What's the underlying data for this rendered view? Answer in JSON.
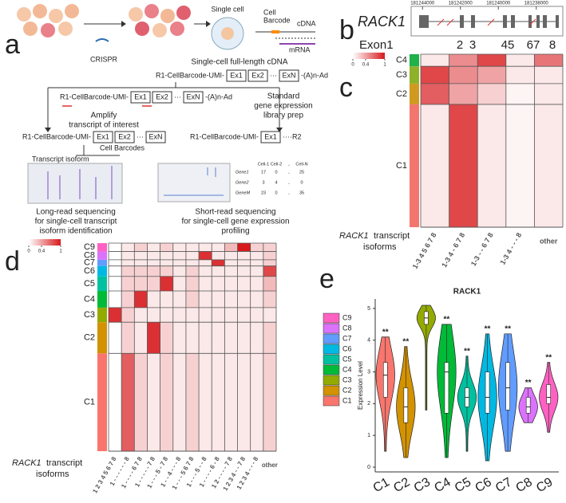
{
  "panel_a": {
    "label": "a",
    "crispr": "CRISPR",
    "single_cell": "Single cell",
    "cell_barcode": [
      "Cell",
      "Barcode"
    ],
    "cdna": "cDNA",
    "mrna": "mRNA",
    "cdna_title": "Single-cell full-length cDNA",
    "construct_full": [
      "R1-CellBarcode-UMI-",
      "Ex1",
      "Ex2",
      "···",
      "ExN",
      "-(A)n-Ad"
    ],
    "construct_amplify": [
      "R1-CellBarcode-UMI-",
      "Ex1",
      "Ex2",
      "···",
      "ExN",
      "-(A)n-Ad"
    ],
    "amplify": [
      "Amplify",
      "transcript of interest"
    ],
    "library_prep": [
      "Standard",
      "gene expression",
      "library prep"
    ],
    "construct_long": [
      "R1-CellBarcode-UMI-",
      "Ex1",
      "Ex2",
      "···",
      "ExN"
    ],
    "construct_short": [
      "R1-CellBarcode-UMI-",
      "Ex1",
      "····R2"
    ],
    "cell_barcodes": "Cell Barcodes",
    "transcript_isoform": "Transcript isoform",
    "long_read": [
      "Long-read sequencing",
      "for single-cell transcript",
      "isoform identification"
    ],
    "short_read": [
      "Short-read sequencing",
      "for single-cell gene expression",
      "profiling"
    ],
    "table": {
      "header": [
        "Cell-1",
        "Cell-2",
        "..",
        "Cell-N"
      ],
      "rows": [
        [
          "Gene1",
          "17",
          "0",
          "..",
          "25"
        ],
        [
          "Gene2",
          "3",
          "4",
          "..",
          "0"
        ],
        [
          "GeneM",
          "23",
          "0",
          "..",
          "35"
        ]
      ]
    }
  },
  "panel_b": {
    "label": "b",
    "gene": "RACK1",
    "xlim": [
      181244600,
      181236600
    ],
    "xticks": [
      181244000,
      181242000,
      181240000,
      181238000
    ],
    "exons": [
      "Exon1",
      "2",
      "3",
      "45",
      "67",
      "8"
    ]
  },
  "panel_c": {
    "label": "c",
    "colorbar_ticks": [
      0,
      0.4,
      1
    ],
    "caption": [
      "RACK1",
      "transcript",
      "isoforms"
    ],
    "clusters": [
      {
        "name": "C4",
        "color": "#1fb14a"
      },
      {
        "name": "C3",
        "color": "#8db22a"
      },
      {
        "name": "C2",
        "color": "#cf9a1f"
      },
      {
        "name": "C1",
        "color": "#f3766e"
      }
    ],
    "isoforms": [
      "1-3 4 5 6 7 8",
      "1-3 4 - 6 7 8",
      "1-3 - - 6 7 8",
      "1-3 4 - - - 8",
      "other"
    ],
    "values": [
      [
        0.1,
        0.5,
        0.8,
        0.1,
        0.6
      ],
      [
        0.8,
        0.5,
        0.4,
        0.1,
        0.1
      ],
      [
        0.7,
        0.4,
        0.2,
        0.05,
        0.1
      ],
      [
        0.1,
        0.8,
        0.1,
        0.05,
        0.1
      ]
    ],
    "cluster_shares": [
      0.07,
      0.1,
      0.12,
      0.71
    ]
  },
  "panel_d": {
    "label": "d",
    "colorbar_ticks": [
      0,
      0.4,
      1
    ],
    "caption": [
      "RACK1",
      "transcript",
      "isoforms"
    ],
    "clusters": [
      {
        "name": "C9",
        "color": "#ff61c3"
      },
      {
        "name": "C8",
        "color": "#db72fb"
      },
      {
        "name": "C7",
        "color": "#619cff"
      },
      {
        "name": "C6",
        "color": "#00b9e3"
      },
      {
        "name": "C5",
        "color": "#00c19f"
      },
      {
        "name": "C4",
        "color": "#00ba38"
      },
      {
        "name": "C3",
        "color": "#93aa00"
      },
      {
        "name": "C2",
        "color": "#d39200"
      },
      {
        "name": "C1",
        "color": "#f8766d"
      }
    ],
    "isoforms": [
      "1 2 3 4 5 6 7 8",
      "1 - - - - - - 8",
      "1 - - - - 6 7 8",
      "1 - - - - - 7 8",
      "1 - - - 5 - 7 8",
      "1 - - 4 - - - 8",
      "1 - - - 5 6 7 8",
      "1 - - - 5 - - 8",
      "1 - - - - 6 - 8",
      "1 2 - - - - 7 8",
      "1 2 3 4 - - 7 8",
      "1 2 3 4 - - - 8",
      "other"
    ],
    "values": [
      [
        0,
        0.1,
        0.2,
        0.1,
        0.2,
        0.1,
        0.1,
        0.1,
        0.1,
        0.3,
        1,
        0.2,
        0.2
      ],
      [
        0,
        0.1,
        0.1,
        0.1,
        0.1,
        0.1,
        0.1,
        0.9,
        0.1,
        0.1,
        0.1,
        0.1,
        0.2
      ],
      [
        0,
        0.1,
        0.1,
        0.1,
        0.1,
        0.1,
        0.1,
        0.1,
        0.9,
        0.1,
        0.1,
        0.1,
        0.2
      ],
      [
        0,
        0.2,
        0.2,
        0.2,
        0.2,
        0.1,
        0.2,
        0.1,
        0.1,
        0.1,
        0.1,
        0.1,
        0.8
      ],
      [
        0,
        0.2,
        0.2,
        0.2,
        0.9,
        0.1,
        0.2,
        0.1,
        0.1,
        0.1,
        0.1,
        0.1,
        0.3
      ],
      [
        0,
        0.2,
        0.9,
        0.1,
        0.1,
        0.1,
        0.2,
        0.1,
        0.1,
        0.1,
        0.1,
        0.1,
        0.2
      ],
      [
        0.9,
        0.2,
        0.1,
        0.1,
        0.1,
        0.1,
        0.1,
        0.1,
        0.1,
        0.1,
        0.1,
        0.1,
        0.1
      ],
      [
        0,
        0.2,
        0.1,
        0.9,
        0.2,
        0.1,
        0.1,
        0.1,
        0.1,
        0.1,
        0.1,
        0.1,
        0.2
      ],
      [
        0,
        0.7,
        0.2,
        0.1,
        0.2,
        0.1,
        0.2,
        0.1,
        0.1,
        0.1,
        0.1,
        0.1,
        0.2
      ]
    ],
    "cluster_shares": [
      0.04,
      0.04,
      0.03,
      0.05,
      0.07,
      0.08,
      0.07,
      0.15,
      0.47
    ]
  },
  "chart_data": {
    "type": "violin",
    "label": "e",
    "title": "RACK1",
    "y_label": "Expression Level",
    "categories": [
      "C1",
      "C2",
      "C3",
      "C4",
      "C5",
      "C6",
      "C7",
      "C8",
      "C9"
    ],
    "colors": [
      "#f8766d",
      "#d39200",
      "#93aa00",
      "#00ba38",
      "#00c19f",
      "#00b9e3",
      "#619cff",
      "#db72fb",
      "#ff61c3"
    ],
    "min": [
      0.5,
      0.3,
      1.8,
      0.3,
      0.5,
      0.2,
      0.5,
      1.4,
      1.1
    ],
    "q1": [
      2.2,
      1.4,
      4.5,
      1.7,
      1.9,
      1.7,
      1.8,
      1.7,
      2.0
    ],
    "median": [
      2.9,
      1.9,
      4.7,
      3.0,
      2.2,
      2.2,
      2.5,
      1.9,
      2.2
    ],
    "q3": [
      3.3,
      2.5,
      4.9,
      3.3,
      2.5,
      3.0,
      3.3,
      2.2,
      2.6
    ],
    "max": [
      4.1,
      3.8,
      5.1,
      4.5,
      3.5,
      4.2,
      4.2,
      2.5,
      3.3
    ],
    "annotations": [
      "**",
      "**",
      null,
      "**",
      "**",
      "**",
      "**",
      "**",
      "**"
    ],
    "ylim": [
      -0.15,
      5.3
    ],
    "yticks": [
      0,
      1,
      2,
      3,
      4,
      5
    ],
    "legend": "left"
  }
}
